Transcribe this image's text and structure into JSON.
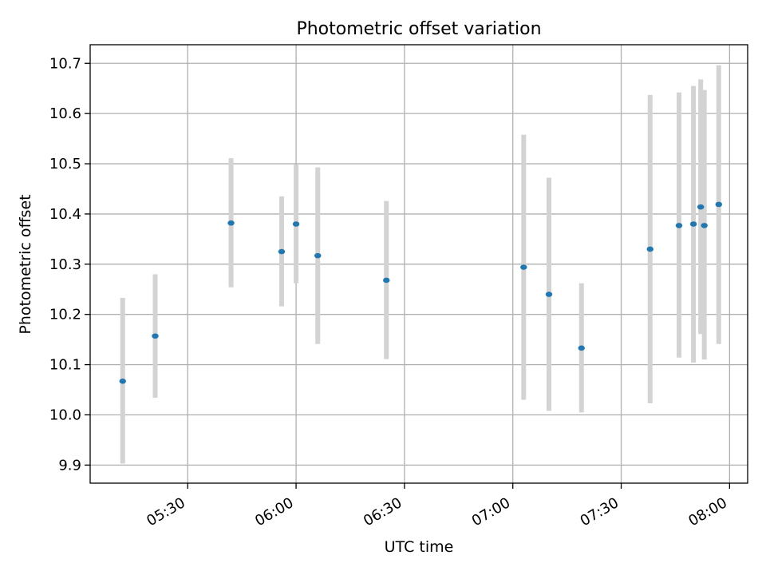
{
  "chart_data": {
    "type": "scatter",
    "title": "Photometric offset variation",
    "xlabel": "UTC time",
    "ylabel": "Photometric offset",
    "x_tick_labels": [
      "05:30",
      "06:00",
      "06:30",
      "07:00",
      "07:30",
      "08:00"
    ],
    "x_ticks": [
      "05:30",
      "06:00",
      "06:30",
      "07:00",
      "07:30",
      "08:00"
    ],
    "xlim": [
      "05:03",
      "08:05"
    ],
    "y_ticks": [
      9.9,
      10.0,
      10.1,
      10.2,
      10.3,
      10.4,
      10.5,
      10.6,
      10.7
    ],
    "y_tick_labels": [
      "9.9",
      "10.0",
      "10.1",
      "10.2",
      "10.3",
      "10.4",
      "10.5",
      "10.6",
      "10.7"
    ],
    "ylim": [
      9.864,
      10.737
    ],
    "grid": true,
    "series": [
      {
        "points": [
          {
            "x": "05:12",
            "y": 10.067,
            "low": 9.903,
            "high": 10.233
          },
          {
            "x": "05:21",
            "y": 10.157,
            "low": 10.034,
            "high": 10.28
          },
          {
            "x": "05:42",
            "y": 10.382,
            "low": 10.254,
            "high": 10.511
          },
          {
            "x": "05:56",
            "y": 10.325,
            "low": 10.216,
            "high": 10.435
          },
          {
            "x": "06:00",
            "y": 10.38,
            "low": 10.262,
            "high": 10.498
          },
          {
            "x": "06:06",
            "y": 10.317,
            "low": 10.141,
            "high": 10.493
          },
          {
            "x": "06:25",
            "y": 10.268,
            "low": 10.111,
            "high": 10.426
          },
          {
            "x": "07:03",
            "y": 10.294,
            "low": 10.03,
            "high": 10.558
          },
          {
            "x": "07:10",
            "y": 10.24,
            "low": 10.008,
            "high": 10.472
          },
          {
            "x": "07:19",
            "y": 10.133,
            "low": 10.005,
            "high": 10.262
          },
          {
            "x": "07:38",
            "y": 10.33,
            "low": 10.023,
            "high": 10.637
          },
          {
            "x": "07:46",
            "y": 10.377,
            "low": 10.114,
            "high": 10.642
          },
          {
            "x": "07:50",
            "y": 10.38,
            "low": 10.104,
            "high": 10.655
          },
          {
            "x": "07:52",
            "y": 10.414,
            "low": 10.161,
            "high": 10.668
          },
          {
            "x": "07:53",
            "y": 10.377,
            "low": 10.11,
            "high": 10.647
          },
          {
            "x": "07:57",
            "y": 10.419,
            "low": 10.141,
            "high": 10.696
          }
        ]
      }
    ],
    "colors": {
      "points": "#1f77b4",
      "errorbars": "#d3d3d3",
      "grid": "#b0b0b0",
      "axes": "#000000"
    }
  }
}
